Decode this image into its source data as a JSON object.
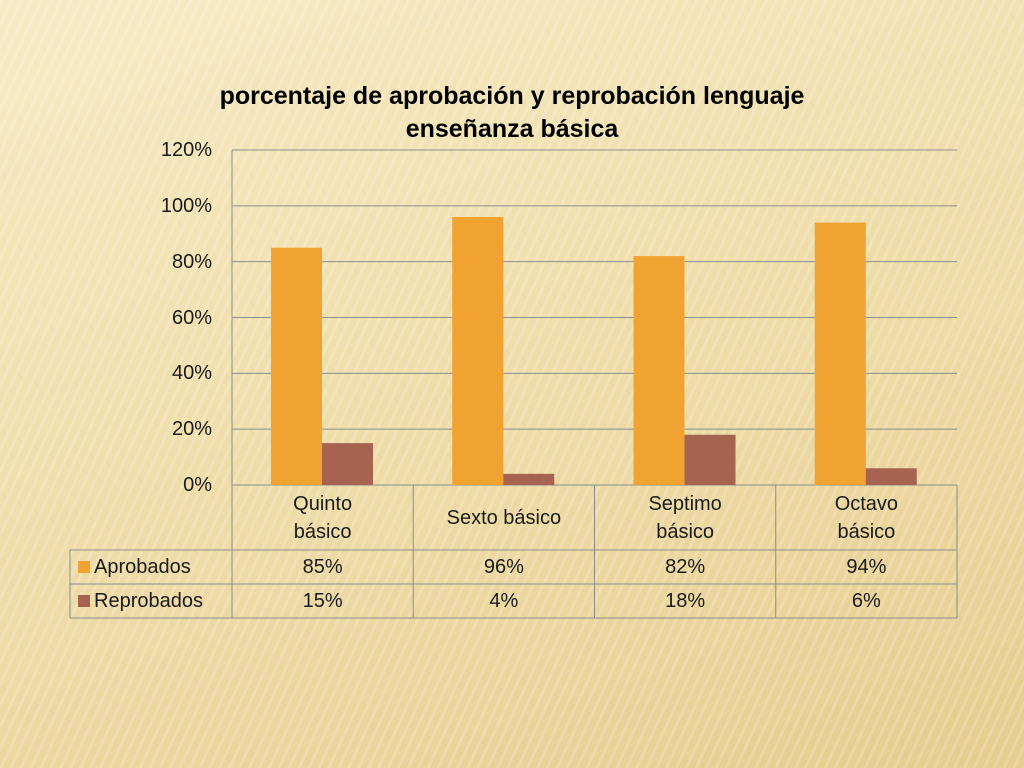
{
  "chart_data": {
    "type": "bar",
    "title": "porcentaje de aprobación y reprobación lenguaje enseñanza básica",
    "categories": [
      "Quinto básico",
      "Sexto básico",
      "Septimo básico",
      "Octavo básico"
    ],
    "series": [
      {
        "name": "Aprobados",
        "color": "#f0a330",
        "values": [
          85,
          96,
          82,
          94
        ],
        "value_labels": [
          "85%",
          "96%",
          "82%",
          "94%"
        ]
      },
      {
        "name": "Reprobados",
        "color": "#a66450",
        "values": [
          15,
          4,
          18,
          6
        ],
        "value_labels": [
          "15%",
          "4%",
          "18%",
          "6%"
        ]
      }
    ],
    "ylim": [
      0,
      120
    ],
    "yticks": [
      {
        "value": 0,
        "label": "0%"
      },
      {
        "value": 20,
        "label": "20%"
      },
      {
        "value": 40,
        "label": "40%"
      },
      {
        "value": 60,
        "label": "60%"
      },
      {
        "value": 80,
        "label": "80%"
      },
      {
        "value": 100,
        "label": "100%"
      },
      {
        "value": 120,
        "label": "120%"
      }
    ],
    "grid": true,
    "legend": "table"
  }
}
